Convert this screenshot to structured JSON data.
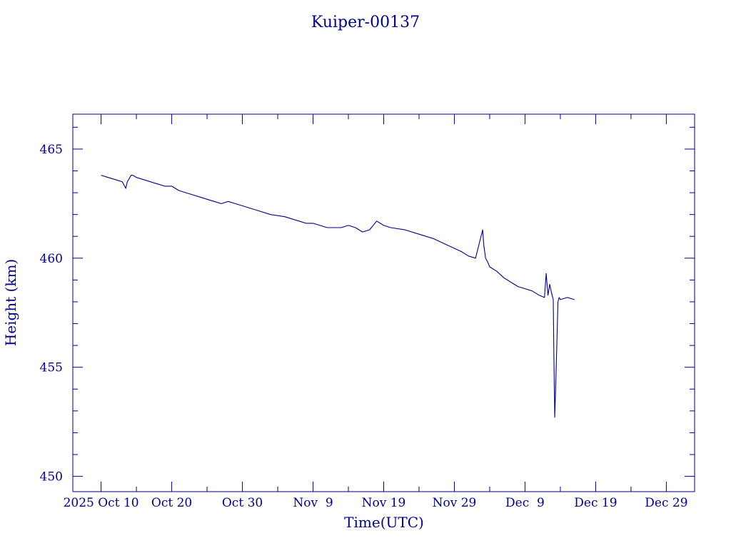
{
  "chart_data": {
    "type": "line",
    "title": "Kuiper-00137",
    "xlabel": "Time(UTC)",
    "ylabel": "Height (km)",
    "color": "#000080",
    "xlim": [
      "2025-10-06",
      "2026-01-02"
    ],
    "ylim": [
      449.3,
      466.6
    ],
    "x_ticks": [
      {
        "date": "2025-10-10",
        "label": "2025 Oct 10"
      },
      {
        "date": "2025-10-20",
        "label": "Oct 20"
      },
      {
        "date": "2025-10-30",
        "label": "Oct 30"
      },
      {
        "date": "2025-11-09",
        "label": "Nov  9"
      },
      {
        "date": "2025-11-19",
        "label": "Nov 19"
      },
      {
        "date": "2025-11-29",
        "label": "Nov 29"
      },
      {
        "date": "2025-12-09",
        "label": "Dec  9"
      },
      {
        "date": "2025-12-19",
        "label": "Dec 19"
      },
      {
        "date": "2025-12-29",
        "label": "Dec 29"
      }
    ],
    "y_ticks": [
      {
        "value": 450,
        "label": "450"
      },
      {
        "value": 455,
        "label": "455"
      },
      {
        "value": 460,
        "label": "460"
      },
      {
        "value": 465,
        "label": "465"
      }
    ],
    "series": [
      {
        "x": [
          "2025-10-10",
          "2025-10-11",
          "2025-10-12",
          "2025-10-13",
          "2025-10-13T12:00",
          "2025-10-13T17:00",
          "2025-10-14T06:00",
          "2025-10-14T12:00",
          "2025-10-15",
          "2025-10-16",
          "2025-10-17",
          "2025-10-18",
          "2025-10-19",
          "2025-10-20",
          "2025-10-21",
          "2025-10-22",
          "2025-10-23",
          "2025-10-24",
          "2025-10-25",
          "2025-10-26",
          "2025-10-27",
          "2025-10-28",
          "2025-10-29",
          "2025-10-30",
          "2025-10-31",
          "2025-11-01",
          "2025-11-03",
          "2025-11-05",
          "2025-11-07",
          "2025-11-08",
          "2025-11-09",
          "2025-11-11",
          "2025-11-13",
          "2025-11-14",
          "2025-11-15",
          "2025-11-16",
          "2025-11-17",
          "2025-11-18",
          "2025-11-18T12:00",
          "2025-11-19",
          "2025-11-20",
          "2025-11-22",
          "2025-11-24",
          "2025-11-26",
          "2025-11-28",
          "2025-11-30",
          "2025-12-01",
          "2025-12-02",
          "2025-12-03",
          "2025-12-03T04:00",
          "2025-12-03T10:00",
          "2025-12-03T18:00",
          "2025-12-04",
          "2025-12-05",
          "2025-12-06",
          "2025-12-07",
          "2025-12-08",
          "2025-12-09",
          "2025-12-10",
          "2025-12-11",
          "2025-12-11T18:00",
          "2025-12-12",
          "2025-12-12T06:00",
          "2025-12-12T12:00",
          "2025-12-12T18:00",
          "2025-12-13",
          "2025-12-13T02:00",
          "2025-12-13T05:00",
          "2025-12-13T08:00",
          "2025-12-13T12:00",
          "2025-12-13T16:00",
          "2025-12-13T20:00",
          "2025-12-14",
          "2025-12-15",
          "2025-12-16"
        ],
        "values": [
          463.8,
          463.7,
          463.6,
          463.5,
          463.2,
          463.5,
          463.8,
          463.8,
          463.7,
          463.6,
          463.5,
          463.4,
          463.3,
          463.3,
          463.1,
          463.0,
          462.9,
          462.8,
          462.7,
          462.6,
          462.5,
          462.6,
          462.5,
          462.4,
          462.3,
          462.2,
          462.0,
          461.9,
          461.7,
          461.6,
          461.6,
          461.4,
          461.4,
          461.5,
          461.4,
          461.2,
          461.3,
          461.7,
          461.6,
          461.5,
          461.4,
          461.3,
          461.1,
          460.9,
          460.6,
          460.3,
          460.1,
          460.0,
          461.3,
          460.6,
          460.0,
          459.8,
          459.6,
          459.4,
          459.1,
          458.9,
          458.7,
          458.6,
          458.5,
          458.3,
          458.2,
          459.3,
          458.3,
          458.8,
          458.4,
          458.1,
          455.5,
          452.7,
          454.0,
          456.0,
          458.0,
          458.2,
          458.1,
          458.2,
          458.1
        ]
      }
    ]
  }
}
